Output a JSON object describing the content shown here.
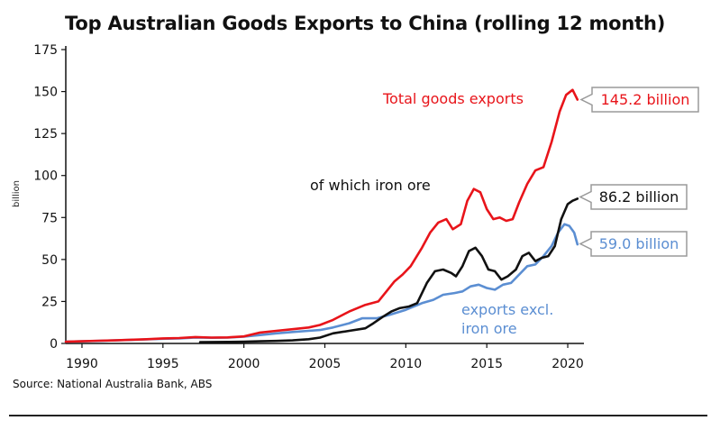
{
  "chart_data": {
    "type": "line",
    "title": "Top Australian Goods Exports to China (rolling 12 month)",
    "ylabel": "billion",
    "xlabel": "",
    "xlim": [
      1989,
      2021
    ],
    "ylim": [
      0,
      175
    ],
    "x_ticks": [
      1990,
      1995,
      2000,
      2005,
      2010,
      2015,
      2020
    ],
    "y_ticks": [
      0,
      25,
      50,
      75,
      100,
      125,
      150,
      175
    ],
    "grid": false,
    "series": [
      {
        "name": "Total goods exports",
        "color": "#e8141a",
        "points": [
          [
            1989,
            1
          ],
          [
            1990,
            1.3
          ],
          [
            1991,
            1.6
          ],
          [
            1992,
            1.8
          ],
          [
            1993,
            2.2
          ],
          [
            1994,
            2.5
          ],
          [
            1995,
            3
          ],
          [
            1996,
            3.2
          ],
          [
            1997,
            3.8
          ],
          [
            1998,
            3.5
          ],
          [
            1999,
            3.6
          ],
          [
            2000,
            4.2
          ],
          [
            2001,
            6.5
          ],
          [
            2002,
            7.5
          ],
          [
            2003,
            8.5
          ],
          [
            2004,
            9.5
          ],
          [
            2004.7,
            11
          ],
          [
            2005.5,
            14
          ],
          [
            2006.5,
            19
          ],
          [
            2007.5,
            23
          ],
          [
            2008.3,
            25
          ],
          [
            2008.8,
            31
          ],
          [
            2009.3,
            37
          ],
          [
            2009.8,
            41
          ],
          [
            2010.3,
            46
          ],
          [
            2011,
            57
          ],
          [
            2011.5,
            66
          ],
          [
            2012,
            72
          ],
          [
            2012.5,
            74
          ],
          [
            2012.9,
            68
          ],
          [
            2013.4,
            71
          ],
          [
            2013.8,
            85
          ],
          [
            2014.2,
            92
          ],
          [
            2014.6,
            90
          ],
          [
            2015,
            80
          ],
          [
            2015.4,
            74
          ],
          [
            2015.8,
            75
          ],
          [
            2016.2,
            73
          ],
          [
            2016.6,
            74
          ],
          [
            2017,
            84
          ],
          [
            2017.5,
            95
          ],
          [
            2018,
            103
          ],
          [
            2018.5,
            105
          ],
          [
            2019,
            120
          ],
          [
            2019.5,
            138
          ],
          [
            2019.9,
            148
          ],
          [
            2020.3,
            151
          ],
          [
            2020.6,
            145.2
          ]
        ]
      },
      {
        "name": "of which iron ore",
        "color": "#111111",
        "points": [
          [
            1997.3,
            0.8
          ],
          [
            1999,
            0.9
          ],
          [
            2000,
            1
          ],
          [
            2001,
            1.3
          ],
          [
            2002,
            1.5
          ],
          [
            2003,
            1.8
          ],
          [
            2004,
            2.5
          ],
          [
            2004.7,
            3.5
          ],
          [
            2005.5,
            6
          ],
          [
            2006.5,
            7.5
          ],
          [
            2007.5,
            9
          ],
          [
            2008,
            12
          ],
          [
            2008.6,
            16
          ],
          [
            2009.1,
            19
          ],
          [
            2009.6,
            21
          ],
          [
            2010.2,
            22
          ],
          [
            2010.7,
            24
          ],
          [
            2011.3,
            36
          ],
          [
            2011.8,
            43
          ],
          [
            2012.3,
            44
          ],
          [
            2012.8,
            42
          ],
          [
            2013.1,
            40
          ],
          [
            2013.5,
            46
          ],
          [
            2013.9,
            55
          ],
          [
            2014.3,
            57
          ],
          [
            2014.7,
            52
          ],
          [
            2015.1,
            44
          ],
          [
            2015.5,
            43
          ],
          [
            2015.9,
            38
          ],
          [
            2016.3,
            40
          ],
          [
            2016.8,
            44
          ],
          [
            2017.2,
            52
          ],
          [
            2017.6,
            54
          ],
          [
            2018,
            49
          ],
          [
            2018.4,
            51
          ],
          [
            2018.8,
            52
          ],
          [
            2019.2,
            58
          ],
          [
            2019.6,
            74
          ],
          [
            2020,
            83
          ],
          [
            2020.3,
            85
          ],
          [
            2020.6,
            86.2
          ]
        ]
      },
      {
        "name": "exports excl. iron ore",
        "color": "#5b8ed2",
        "points": [
          [
            1989,
            1
          ],
          [
            1990,
            1.3
          ],
          [
            1991,
            1.5
          ],
          [
            1992,
            1.8
          ],
          [
            1993,
            2.1
          ],
          [
            1994,
            2.4
          ],
          [
            1995,
            2.8
          ],
          [
            1996,
            3
          ],
          [
            1997,
            3.5
          ],
          [
            1998,
            3.4
          ],
          [
            1999,
            3.5
          ],
          [
            2000,
            4
          ],
          [
            2001,
            5
          ],
          [
            2002,
            6
          ],
          [
            2003,
            6.8
          ],
          [
            2004,
            7.5
          ],
          [
            2004.7,
            8
          ],
          [
            2005.5,
            9.5
          ],
          [
            2006.5,
            12
          ],
          [
            2007.3,
            15
          ],
          [
            2008.2,
            15
          ],
          [
            2009,
            17
          ],
          [
            2010,
            20
          ],
          [
            2011,
            24
          ],
          [
            2011.7,
            26
          ],
          [
            2012.3,
            29
          ],
          [
            2013,
            30
          ],
          [
            2013.5,
            31
          ],
          [
            2014,
            34
          ],
          [
            2014.5,
            35
          ],
          [
            2015,
            33
          ],
          [
            2015.5,
            32
          ],
          [
            2016,
            35
          ],
          [
            2016.5,
            36
          ],
          [
            2017,
            41
          ],
          [
            2017.5,
            46
          ],
          [
            2018,
            47
          ],
          [
            2018.5,
            52
          ],
          [
            2019,
            58
          ],
          [
            2019.4,
            66
          ],
          [
            2019.8,
            71
          ],
          [
            2020.1,
            70
          ],
          [
            2020.4,
            66
          ],
          [
            2020.6,
            59
          ]
        ]
      }
    ],
    "annotations": [
      {
        "text": "Total goods exports",
        "color": "#e8141a"
      },
      {
        "text": "of which iron ore",
        "color": "#111111"
      },
      {
        "text": "exports excl.",
        "color": "#5b8ed2"
      },
      {
        "text": "iron ore",
        "color": "#5b8ed2"
      }
    ],
    "callouts": [
      {
        "text": "145.2 billion",
        "color": "#e8141a",
        "value": 145.2
      },
      {
        "text": "86.2 billion",
        "color": "#111111",
        "value": 86.2
      },
      {
        "text": "59.0 billion",
        "color": "#5b8ed2",
        "value": 59.0
      }
    ]
  },
  "source": "Source: National Australia Bank, ABS"
}
